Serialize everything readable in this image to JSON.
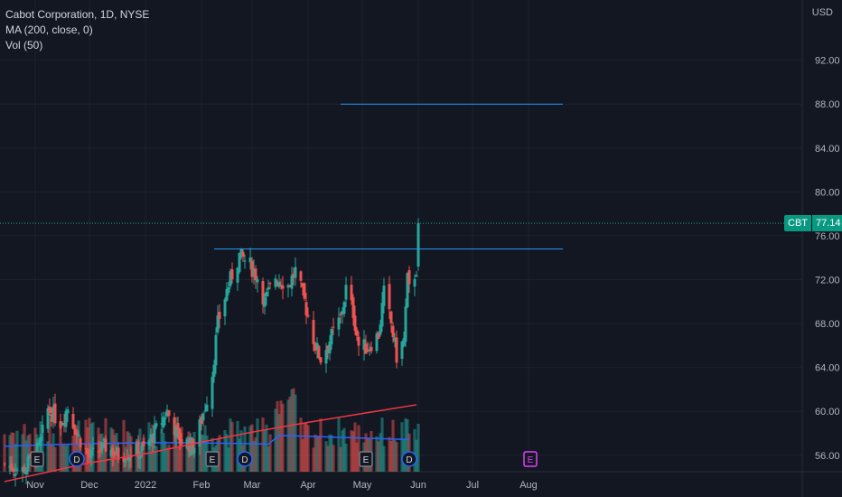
{
  "legend": {
    "title": "Cabot Corporation, 1D, NYSE",
    "ma": "MA (200, close, 0)",
    "vol": "Vol (50)"
  },
  "axis": {
    "currency": "USD",
    "last_price_symbol": "CBT",
    "last_price": "77.14"
  },
  "chart_data": {
    "type": "candlestick",
    "title": "Cabot Corporation, 1D, NYSE",
    "y_axis": {
      "unit": "USD",
      "ticks": [
        "92.00",
        "88.00",
        "84.00",
        "80.00",
        "76.00",
        "72.00",
        "68.00",
        "64.00",
        "60.00",
        "56.00"
      ],
      "ylim": [
        54.5,
        96.5
      ]
    },
    "x_axis": {
      "ticks": [
        "Nov",
        "Dec",
        "2022",
        "Feb",
        "Mar",
        "Apr",
        "May",
        "Jun",
        "Jul",
        "Aug"
      ]
    },
    "colors": {
      "up": "#26a69a",
      "down": "#ef5350",
      "ma": "#f23645",
      "volume_ma": "#2962ff",
      "hline": "#2196f3",
      "background": "#131722"
    },
    "last_price": 77.14,
    "horizontal_lines": [
      {
        "price": 88.0,
        "from": "2022-04-19",
        "to": "2022-08-20"
      },
      {
        "price": 74.8,
        "from": "2022-02-08",
        "to": "2022-08-20"
      }
    ],
    "ma200": [
      {
        "date": "2021-10-15",
        "value": 53.6
      },
      {
        "date": "2021-12-01",
        "value": 55.3
      },
      {
        "date": "2022-01-03",
        "value": 56.2
      },
      {
        "date": "2022-02-01",
        "value": 57.2
      },
      {
        "date": "2022-03-01",
        "value": 58.1
      },
      {
        "date": "2022-04-01",
        "value": 59.0
      },
      {
        "date": "2022-05-01",
        "value": 59.8
      },
      {
        "date": "2022-05-31",
        "value": 60.6
      }
    ],
    "events": [
      {
        "type": "E",
        "date": "2021-11-02",
        "status": "past"
      },
      {
        "type": "D",
        "date": "2021-11-24",
        "status": "past"
      },
      {
        "type": "E",
        "date": "2022-02-07",
        "status": "past"
      },
      {
        "type": "D",
        "date": "2022-02-25",
        "status": "past"
      },
      {
        "type": "E",
        "date": "2022-05-03",
        "status": "past"
      },
      {
        "type": "D",
        "date": "2022-05-27",
        "status": "past"
      },
      {
        "type": "E",
        "date": "2022-08-02",
        "status": "upcoming"
      }
    ],
    "close_anchors": [
      [
        "2021-10-15",
        55.2
      ],
      [
        "2021-10-25",
        54.6
      ],
      [
        "2021-11-03",
        56.6
      ],
      [
        "2021-11-08",
        60.2
      ],
      [
        "2021-11-15",
        59.0
      ],
      [
        "2021-11-19",
        60.4
      ],
      [
        "2021-11-24",
        58.0
      ],
      [
        "2021-12-01",
        55.8
      ],
      [
        "2021-12-10",
        56.8
      ],
      [
        "2021-12-17",
        56.0
      ],
      [
        "2021-12-31",
        56.5
      ],
      [
        "2022-01-07",
        58.3
      ],
      [
        "2022-01-13",
        60.0
      ],
      [
        "2022-01-20",
        57.4
      ],
      [
        "2022-01-28",
        56.8
      ],
      [
        "2022-02-03",
        60.5
      ],
      [
        "2022-02-07",
        63.5
      ],
      [
        "2022-02-10",
        68.0
      ],
      [
        "2022-02-15",
        71.0
      ],
      [
        "2022-02-17",
        72.0
      ],
      [
        "2022-02-22",
        74.2
      ],
      [
        "2022-02-28",
        73.3
      ],
      [
        "2022-03-04",
        72.2
      ],
      [
        "2022-03-08",
        70.0
      ],
      [
        "2022-03-14",
        72.3
      ],
      [
        "2022-03-21",
        71.5
      ],
      [
        "2022-03-25",
        72.8
      ],
      [
        "2022-03-30",
        70.0
      ],
      [
        "2022-04-05",
        66.0
      ],
      [
        "2022-04-08",
        64.8
      ],
      [
        "2022-04-13",
        66.5
      ],
      [
        "2022-04-19",
        68.5
      ],
      [
        "2022-04-22",
        71.2
      ],
      [
        "2022-04-26",
        69.0
      ],
      [
        "2022-04-29",
        66.0
      ],
      [
        "2022-05-04",
        65.8
      ],
      [
        "2022-05-10",
        67.0
      ],
      [
        "2022-05-13",
        70.8
      ],
      [
        "2022-05-17",
        68.0
      ],
      [
        "2022-05-20",
        65.0
      ],
      [
        "2022-05-24",
        66.5
      ],
      [
        "2022-05-26",
        72.0
      ],
      [
        "2022-05-27",
        71.0
      ],
      [
        "2022-05-31",
        73.0
      ],
      [
        "2022-06-01",
        77.14
      ]
    ]
  }
}
